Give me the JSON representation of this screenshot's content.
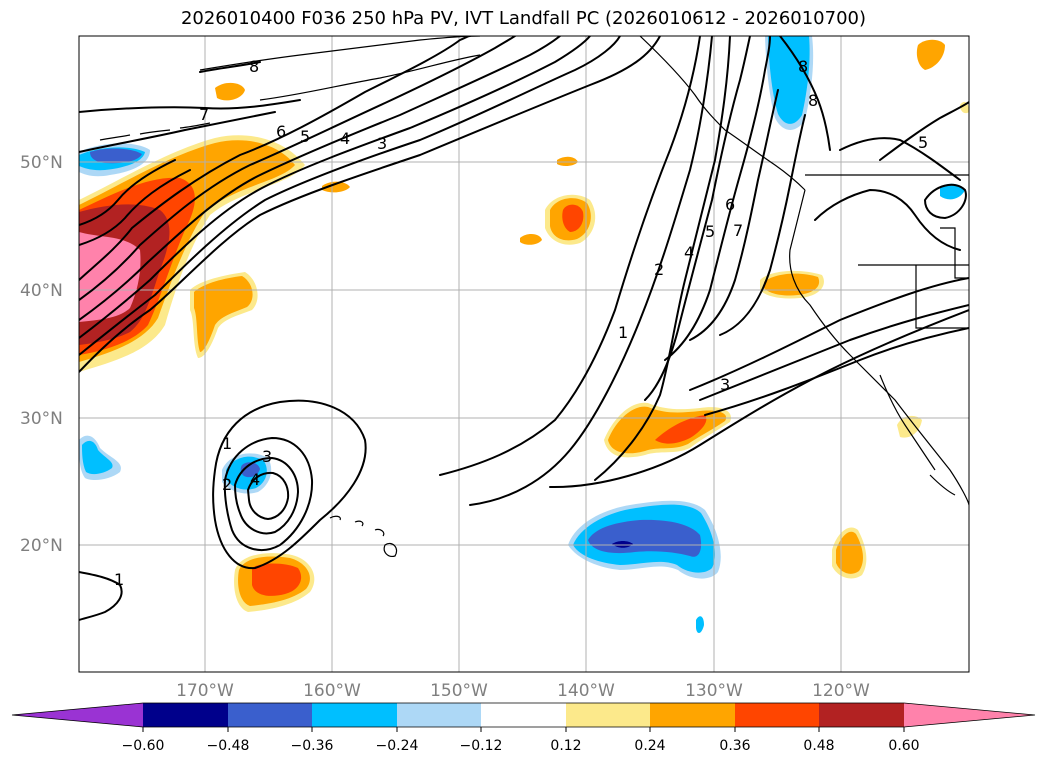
{
  "title": "2026010400 F036 250 hPa PV, IVT Landfall PC (2026010612 - 2026010700)",
  "map": {
    "lat_labels": [
      "50°N",
      "40°N",
      "30°N",
      "20°N"
    ],
    "lon_labels": [
      "170°W",
      "160°W",
      "150°W",
      "140°W",
      "130°W",
      "120°W"
    ],
    "contour_labels": [
      "8",
      "7",
      "6",
      "5",
      "4",
      "3",
      "8",
      "8",
      "5",
      "6",
      "7",
      "5",
      "4",
      "2",
      "1",
      "3",
      "1",
      "3",
      "4",
      "2",
      "1"
    ]
  },
  "colorbar": {
    "tick_labels": [
      "−0.60",
      "−0.48",
      "−0.36",
      "−0.24",
      "−0.12",
      "0.12",
      "0.24",
      "0.36",
      "0.48",
      "0.60"
    ],
    "colors": [
      "#9a33d3",
      "#00008b",
      "#3a5fcd",
      "#00bfff",
      "#add8f6",
      "#ffffff",
      "#fce98b",
      "#ffa500",
      "#ff4500",
      "#b22222",
      "#ff82ab"
    ]
  }
}
